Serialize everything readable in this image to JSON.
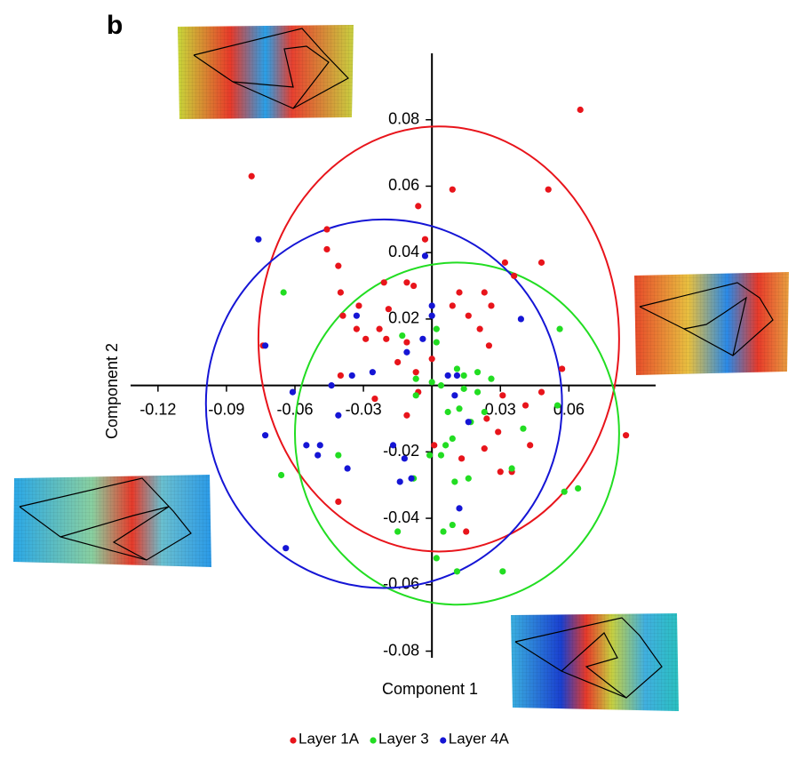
{
  "chart_data": {
    "type": "scatter",
    "panel_label": "b",
    "x_label": "Component 1",
    "y_label": "Component 2",
    "xlim": [
      -0.132,
      0.098
    ],
    "ylim": [
      -0.082,
      0.1
    ],
    "xticks": [
      -0.12,
      -0.09,
      -0.06,
      -0.03,
      0.03,
      0.06
    ],
    "yticks": [
      -0.08,
      -0.06,
      -0.04,
      -0.02,
      0.02,
      0.04,
      0.06,
      0.08
    ],
    "series": [
      {
        "name": "Layer 1A",
        "color": "#e8141b",
        "x": [
          0.065,
          -0.079,
          0.009,
          0.051,
          -0.006,
          -0.046,
          -0.003,
          -0.046,
          0.032,
          0.048,
          -0.041,
          0.036,
          -0.04,
          -0.021,
          -0.011,
          -0.008,
          0.012,
          0.023,
          -0.032,
          -0.019,
          0.009,
          0.016,
          0.026,
          -0.039,
          0.021,
          -0.033,
          -0.023,
          -0.029,
          -0.02,
          -0.011,
          -0.074,
          0.025,
          0.0,
          0.057,
          -0.015,
          -0.007,
          -0.04,
          -0.006,
          -0.025,
          0.048,
          0.031,
          0.041,
          -0.011,
          0.024,
          0.029,
          0.085,
          0.001,
          0.043,
          0.023,
          0.013,
          0.035,
          0.03,
          -0.041,
          0.015
        ],
        "y": [
          0.083,
          0.063,
          0.059,
          0.059,
          0.054,
          0.047,
          0.044,
          0.041,
          0.037,
          0.037,
          0.036,
          0.033,
          0.028,
          0.031,
          0.031,
          0.03,
          0.028,
          0.028,
          0.024,
          0.023,
          0.024,
          0.021,
          0.024,
          0.021,
          0.017,
          0.017,
          0.017,
          0.014,
          0.014,
          0.013,
          0.012,
          0.012,
          0.008,
          0.005,
          0.007,
          0.004,
          0.003,
          -0.002,
          -0.004,
          -0.002,
          -0.003,
          -0.006,
          -0.009,
          -0.01,
          -0.014,
          -0.015,
          -0.018,
          -0.018,
          -0.019,
          -0.022,
          -0.026,
          -0.026,
          -0.035,
          -0.044
        ],
        "ellipse": {
          "cx": 0.003,
          "cy": 0.014,
          "rx": 0.079,
          "ry": 0.064
        }
      },
      {
        "name": "Layer 3",
        "color": "#22dd22",
        "x": [
          -0.065,
          -0.013,
          0.002,
          0.002,
          0.056,
          0.011,
          0.014,
          0.02,
          0.026,
          -0.007,
          0.004,
          0.014,
          0.0,
          0.02,
          -0.007,
          0.012,
          0.007,
          0.023,
          0.055,
          0.017,
          0.009,
          0.04,
          0.006,
          -0.041,
          -0.001,
          0.004,
          0.035,
          -0.008,
          0.016,
          0.01,
          -0.066,
          0.064,
          0.058,
          -0.015,
          0.009,
          0.005,
          0.002,
          0.011,
          0.031
        ],
        "y": [
          0.028,
          0.015,
          0.013,
          0.017,
          0.017,
          0.005,
          0.003,
          0.004,
          0.002,
          0.002,
          0.0,
          -0.001,
          0.001,
          -0.002,
          -0.003,
          -0.007,
          -0.008,
          -0.008,
          -0.006,
          -0.011,
          -0.016,
          -0.013,
          -0.018,
          -0.021,
          -0.021,
          -0.021,
          -0.025,
          -0.028,
          -0.028,
          -0.029,
          -0.027,
          -0.031,
          -0.032,
          -0.044,
          -0.042,
          -0.044,
          -0.052,
          -0.056,
          -0.056
        ],
        "ellipse": {
          "cx": 0.011,
          "cy": -0.0145,
          "rx": 0.071,
          "ry": 0.0515
        }
      },
      {
        "name": "Layer 4A",
        "color": "#1515d5",
        "x": [
          -0.076,
          -0.003,
          0.0,
          -0.033,
          0.0,
          0.039,
          -0.004,
          -0.073,
          -0.011,
          -0.035,
          -0.026,
          -0.044,
          0.007,
          0.011,
          -0.061,
          0.01,
          -0.041,
          0.016,
          -0.073,
          -0.055,
          -0.049,
          -0.017,
          -0.05,
          -0.037,
          -0.012,
          -0.014,
          -0.009,
          0.012,
          -0.064
        ],
        "y": [
          0.044,
          0.039,
          0.024,
          0.021,
          0.021,
          0.02,
          0.014,
          0.012,
          0.01,
          0.003,
          0.004,
          0.0,
          0.003,
          0.003,
          -0.002,
          -0.003,
          -0.009,
          -0.011,
          -0.015,
          -0.018,
          -0.018,
          -0.018,
          -0.021,
          -0.025,
          -0.022,
          -0.029,
          -0.028,
          -0.037,
          -0.049
        ],
        "ellipse": {
          "cx": -0.021,
          "cy": -0.0055,
          "rx": 0.078,
          "ry": 0.0555
        }
      }
    ]
  }
}
